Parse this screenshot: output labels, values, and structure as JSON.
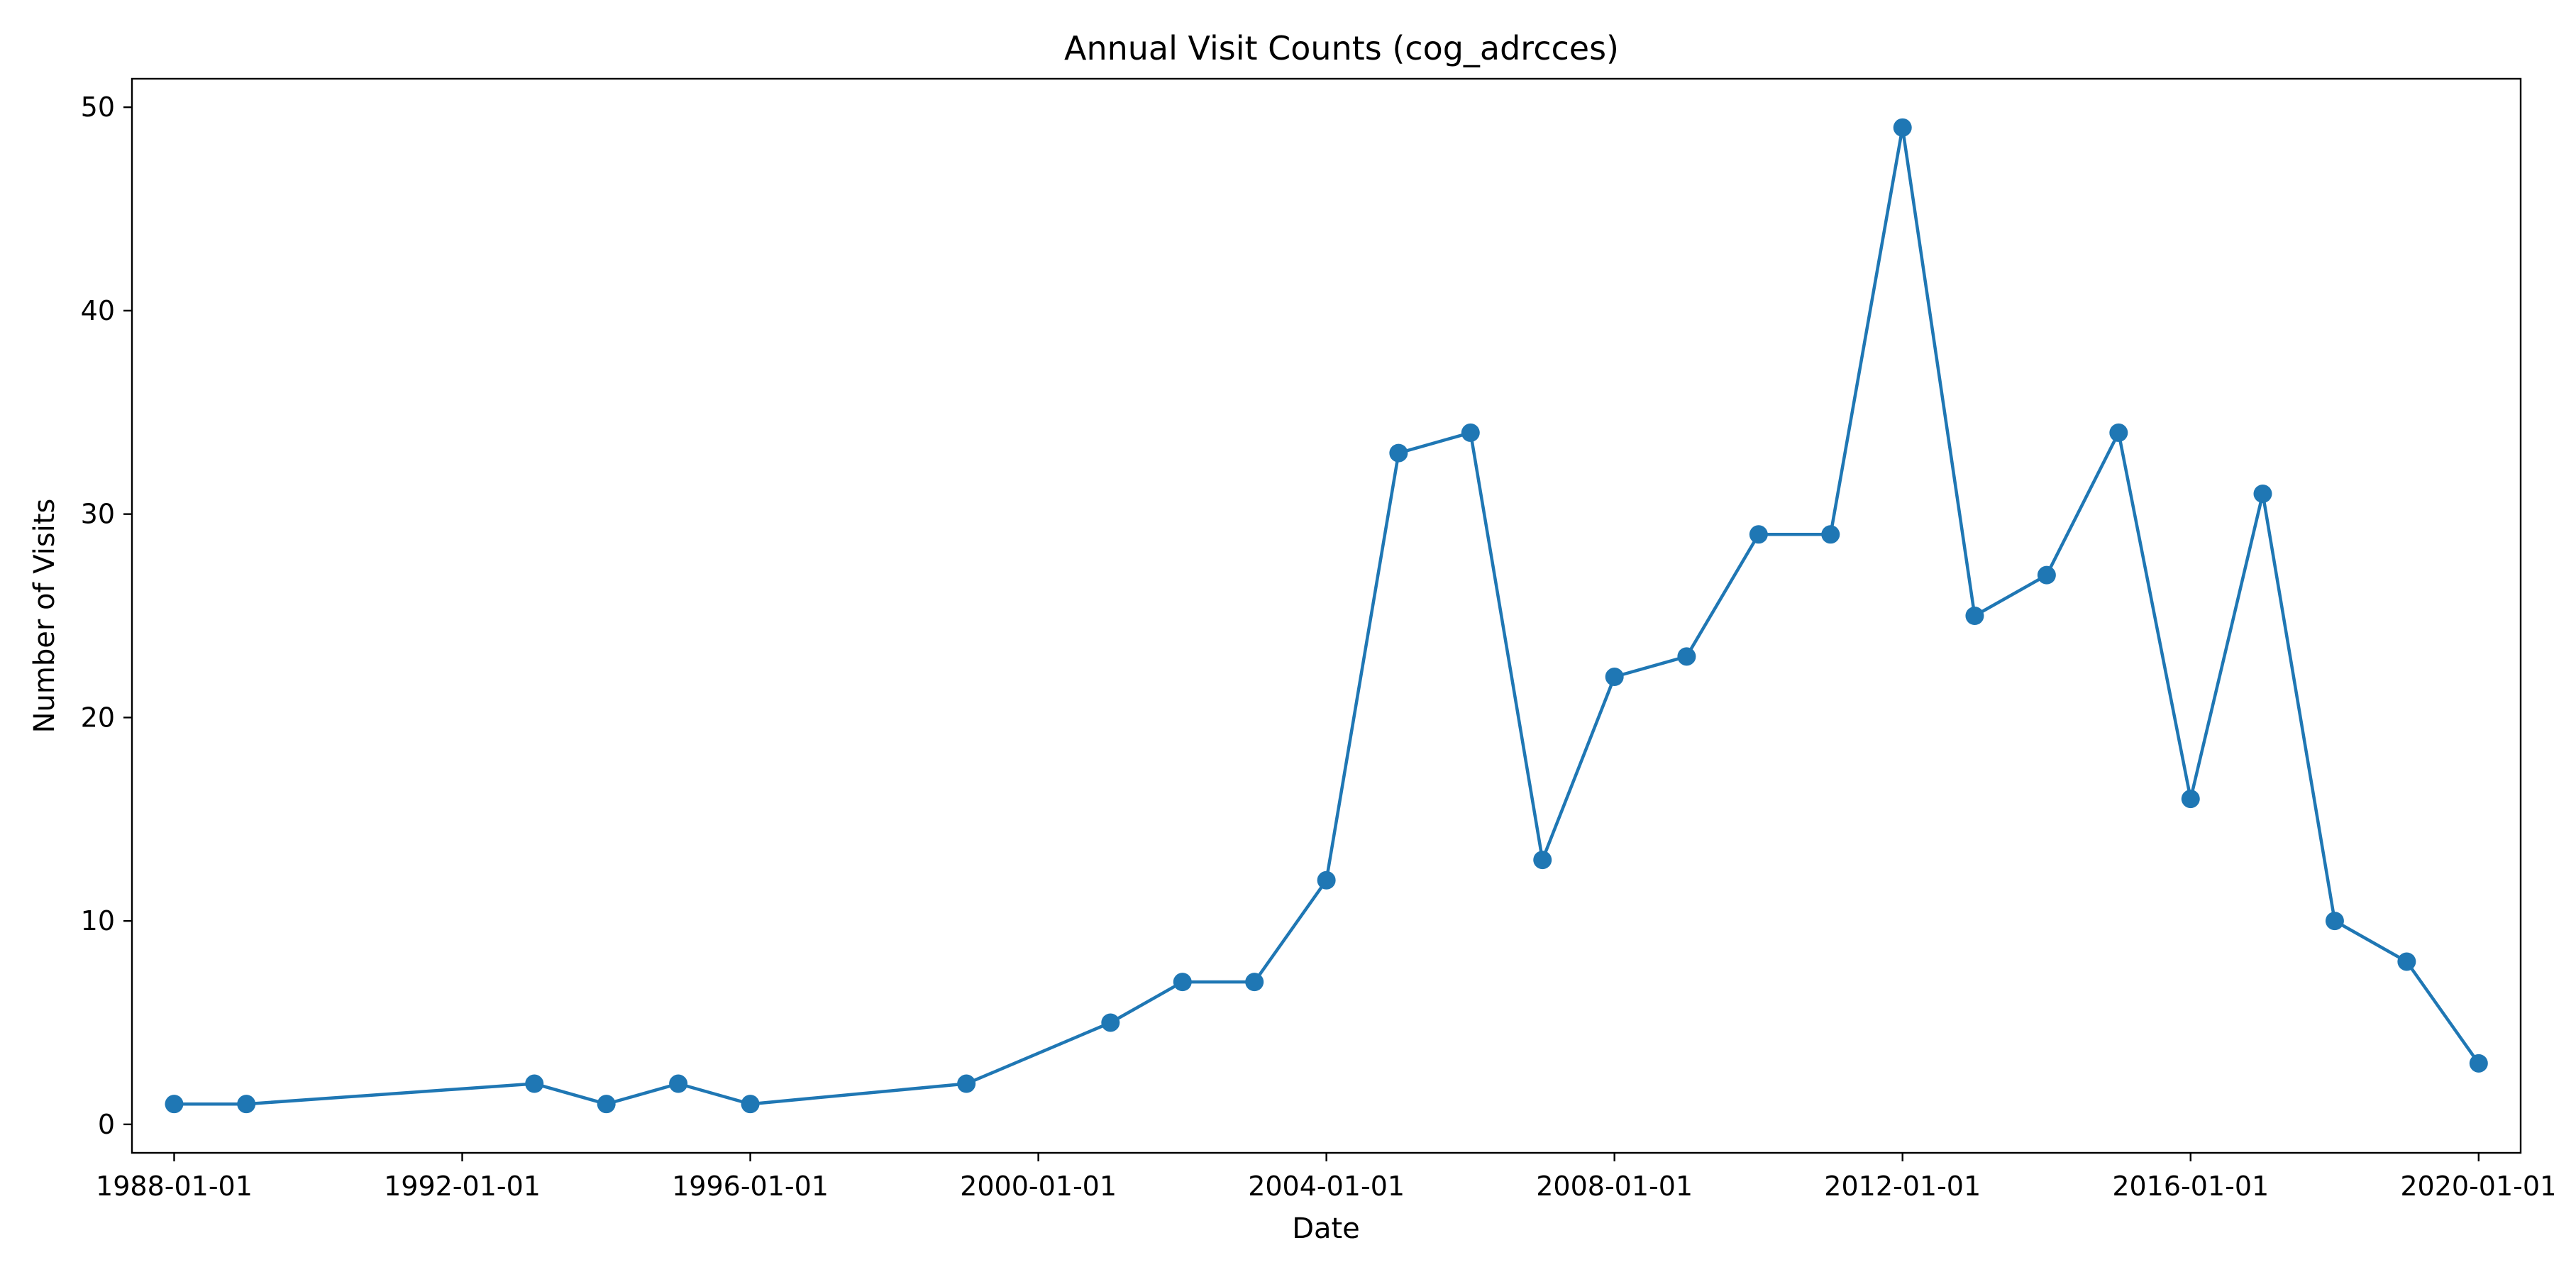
{
  "chart_data": {
    "type": "line",
    "title": "Annual Visit Counts (cog_adrcces)",
    "xlabel": "Date",
    "ylabel": "Number of Visits",
    "x_axis_type": "date",
    "xlim": [
      "1987-06-01",
      "2020-08-01"
    ],
    "ylim": [
      -1.4,
      51.4
    ],
    "x_ticks": [
      "1988-01-01",
      "1992-01-01",
      "1996-01-01",
      "2000-01-01",
      "2004-01-01",
      "2008-01-01",
      "2012-01-01",
      "2016-01-01",
      "2020-01-01"
    ],
    "y_ticks": [
      0,
      10,
      20,
      30,
      40,
      50
    ],
    "grid": false,
    "legend": "none",
    "series": [
      {
        "color": "#1f77b4",
        "marker": "circle",
        "points": [
          {
            "x": "1988-01-01",
            "y": 1
          },
          {
            "x": "1989-01-01",
            "y": 1
          },
          {
            "x": "1993-01-01",
            "y": 2
          },
          {
            "x": "1994-01-01",
            "y": 1
          },
          {
            "x": "1995-01-01",
            "y": 2
          },
          {
            "x": "1996-01-01",
            "y": 1
          },
          {
            "x": "1999-01-01",
            "y": 2
          },
          {
            "x": "2001-01-01",
            "y": 5
          },
          {
            "x": "2002-01-01",
            "y": 7
          },
          {
            "x": "2003-01-01",
            "y": 7
          },
          {
            "x": "2004-01-01",
            "y": 12
          },
          {
            "x": "2005-01-01",
            "y": 33
          },
          {
            "x": "2006-01-01",
            "y": 34
          },
          {
            "x": "2007-01-01",
            "y": 13
          },
          {
            "x": "2008-01-01",
            "y": 22
          },
          {
            "x": "2009-01-01",
            "y": 23
          },
          {
            "x": "2010-01-01",
            "y": 29
          },
          {
            "x": "2011-01-01",
            "y": 29
          },
          {
            "x": "2012-01-01",
            "y": 49
          },
          {
            "x": "2013-01-01",
            "y": 25
          },
          {
            "x": "2014-01-01",
            "y": 27
          },
          {
            "x": "2015-01-01",
            "y": 34
          },
          {
            "x": "2016-01-01",
            "y": 16
          },
          {
            "x": "2017-01-01",
            "y": 31
          },
          {
            "x": "2018-01-01",
            "y": 10
          },
          {
            "x": "2019-01-01",
            "y": 8
          },
          {
            "x": "2020-01-01",
            "y": 3
          }
        ]
      }
    ]
  }
}
